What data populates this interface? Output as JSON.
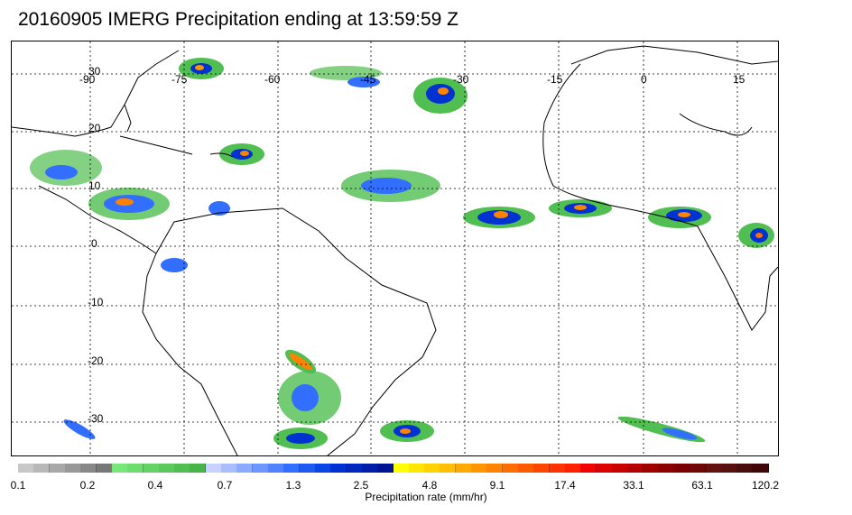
{
  "title": "20160905 IMERG Precipitation ending at 13:59:59 Z",
  "lon_labels": [
    "-90",
    "-75",
    "-60",
    "-45",
    "-30",
    "-15",
    "0",
    "15"
  ],
  "lat_labels": [
    "30",
    "20",
    "10",
    "0",
    "-10",
    "-20",
    "-30"
  ],
  "colorbar": {
    "label": "Precipitation rate (mm/hr)",
    "tick_labels": [
      "0.1",
      "0.2",
      "0.4",
      "0.7",
      "1.3",
      "2.5",
      "4.8",
      "9.1",
      "17.4",
      "33.1",
      "63.1",
      "120.2"
    ],
    "colors": [
      "#c8c8c8",
      "#b8b8b8",
      "#a8a8a8",
      "#989898",
      "#888888",
      "#787878",
      "#78e678",
      "#6edc6e",
      "#64d264",
      "#5ac85a",
      "#50be50",
      "#46b446",
      "#c8d2ff",
      "#aabeff",
      "#8caaff",
      "#6e96ff",
      "#5082ff",
      "#326eff",
      "#1e5af0",
      "#0a46e6",
      "#0032d2",
      "#0028be",
      "#001eaa",
      "#001496",
      "#ffff00",
      "#ffe600",
      "#ffd200",
      "#ffbe00",
      "#ffaa00",
      "#ff9600",
      "#ff8200",
      "#ff6e00",
      "#ff5a00",
      "#ff4600",
      "#ff3200",
      "#ff1e00",
      "#f00000",
      "#dc0000",
      "#c80000",
      "#b40000",
      "#a00000",
      "#8c0000",
      "#7a0000",
      "#6e0808",
      "#621010",
      "#561010",
      "#4a0c0c",
      "#3e0808"
    ]
  },
  "colors": {
    "coastline": "#000000",
    "grid": "#000000",
    "frame": "#000000"
  }
}
